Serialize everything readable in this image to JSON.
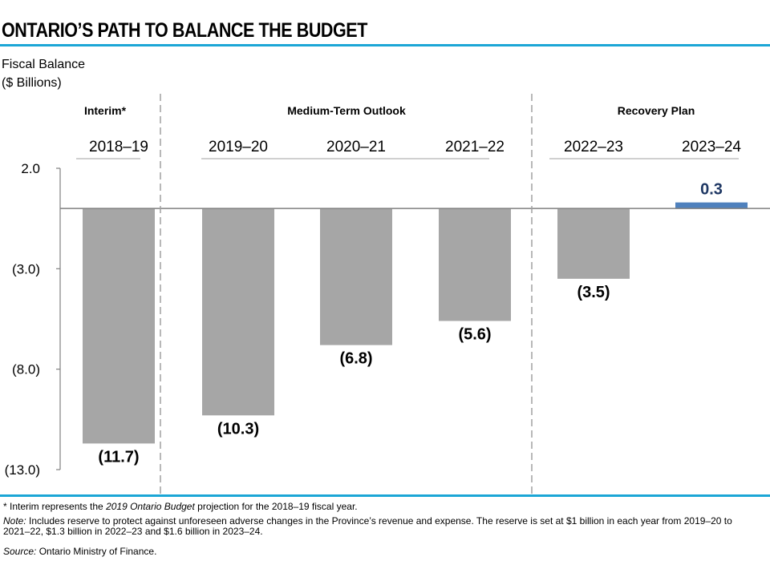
{
  "title": "ONTARIO’S PATH TO BALANCE THE BUDGET",
  "colors": {
    "accent_rule": "#1ba6d6",
    "bar_deficit": "#a6a6a6",
    "bar_surplus": "#4f81bd",
    "axis": "#808080"
  },
  "chart_data": {
    "type": "bar",
    "title": "ONTARIO’S PATH TO BALANCE THE BUDGET",
    "ylabel": "Fiscal Balance ($ Billions)",
    "ylabel_lines": [
      "Fiscal Balance",
      "($ Billions)"
    ],
    "xlabel": "",
    "ylim": [
      -13.0,
      2.0
    ],
    "yticks": [
      2.0,
      -3.0,
      -8.0,
      -13.0
    ],
    "ytick_labels": [
      "2.0",
      "(3.0)",
      "(8.0)",
      "(13.0)"
    ],
    "grid": false,
    "categories": [
      "2018–19",
      "2019–20",
      "2020–21",
      "2021–22",
      "2022–23",
      "2023–24"
    ],
    "values": [
      -11.7,
      -10.3,
      -6.8,
      -5.6,
      -3.5,
      0.3
    ],
    "data_labels": [
      "(11.7)",
      "(10.3)",
      "(6.8)",
      "(5.6)",
      "(3.5)",
      "0.3"
    ],
    "groups": [
      {
        "label": "Interim*",
        "categories": [
          "2018–19"
        ]
      },
      {
        "label": "Medium-Term Outlook",
        "categories": [
          "2019–20",
          "2020–21",
          "2021–22"
        ]
      },
      {
        "label": "Recovery Plan",
        "categories": [
          "2022–23",
          "2023–24"
        ]
      }
    ]
  },
  "footnotes": {
    "interim_prefix": "* Interim represents the ",
    "interim_italic": "2019 Ontario Budget",
    "interim_suffix": " projection for the 2018–19 fiscal year.",
    "note_label": "Note:",
    "note_text": " Includes reserve to protect against unforeseen adverse changes in the Province’s revenue and expense. The reserve is set at $1 billion in each year from 2019–20 to 2021–22, $1.3 billion in 2022–23 and $1.6 billion in 2023–24.",
    "source_label": "Source:",
    "source_text": " Ontario Ministry of Finance."
  }
}
